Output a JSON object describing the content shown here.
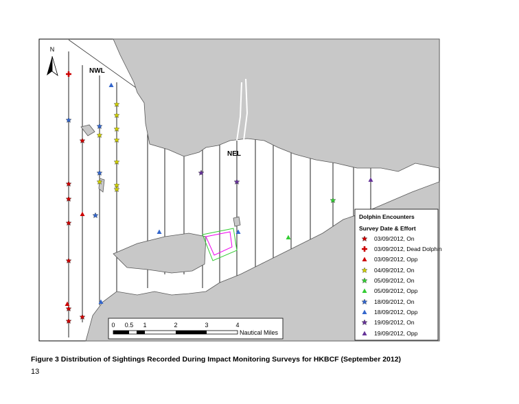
{
  "north": "N",
  "labels": {
    "nwl": "NWL",
    "nel": "NEL"
  },
  "legend": {
    "title": "Dolphin Encounters",
    "subtitle": "Survey Date & Effort",
    "entries": [
      "03/09/2012, On",
      "03/09/2012, Dead Dolphin",
      "03/09/2012, Opp",
      "04/09/2012, On",
      "05/09/2012, On",
      "05/09/2012, Opp",
      "18/09/2012, On",
      "18/09/2012, Opp",
      "19/09/2012, On",
      "19/09/2012, Opp"
    ]
  },
  "scale": {
    "ticks": [
      0,
      0.5,
      1,
      2,
      3,
      4
    ],
    "unit": "Nautical Miles"
  },
  "caption": "Figure 3 Distribution of Sightings Recorded During Impact Monitoring Surveys for HKBCF (September 2012)",
  "page_number": "13"
}
